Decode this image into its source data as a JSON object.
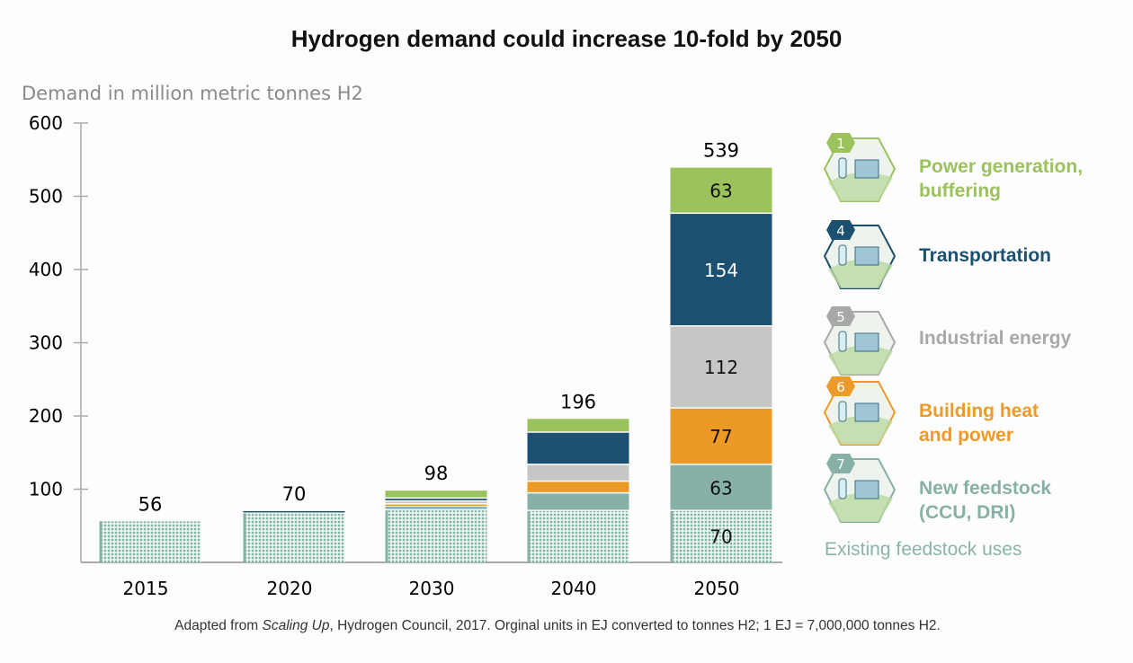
{
  "title": "Hydrogen demand could increase 10-fold by 2050",
  "footnote": {
    "pre": "Adapted from ",
    "italic": "Scaling Up",
    "post": ", Hydrogen Council, 2017. Orginal units in EJ converted to tonnes H2; 1 EJ = 7,000,000 tonnes H2."
  },
  "legend": [
    {
      "num": "1",
      "label_lines": [
        "Power generation,",
        "buffering"
      ],
      "color": "#9bc25d",
      "icon": "wind-electrolyser-icon"
    },
    {
      "num": "4",
      "label_lines": [
        "Transportation"
      ],
      "color": "#1b5070",
      "icon": "fuel-station-icon"
    },
    {
      "num": "5",
      "label_lines": [
        "Industrial energy"
      ],
      "color": "#a8a8a8",
      "icon": "factory-icon"
    },
    {
      "num": "6",
      "label_lines": [
        "Building heat",
        "and power"
      ],
      "color": "#ec9a2a",
      "icon": "building-chp-icon"
    },
    {
      "num": "7",
      "label_lines": [
        "New feedstock",
        "(CCU, DRI)"
      ],
      "color": "#87b0a7",
      "icon": "feedstock-plant-icon"
    }
  ],
  "existing_label": "Existing feedstock uses",
  "chart_data": {
    "type": "bar",
    "stacked": true,
    "title": "Hydrogen demand could increase 10-fold by 2050",
    "ylabel": "Demand in million metric tonnes H2",
    "ylim": [
      0,
      600
    ],
    "yticks": [
      100,
      200,
      300,
      400,
      500,
      600
    ],
    "categories": [
      "2015",
      "2020",
      "2030",
      "2040",
      "2050"
    ],
    "totals": [
      "56",
      "70",
      "98",
      "196",
      "539"
    ],
    "series": [
      {
        "name": "Existing feedstock uses",
        "color": "#87b0a7",
        "pattern": "dotted",
        "values": [
          56,
          67,
          71,
          70,
          70
        ],
        "labels": [
          "",
          "",
          "",
          "",
          "70"
        ]
      },
      {
        "name": "New feedstock (CCU, DRI)",
        "color": "#87b0a7",
        "values": [
          0,
          0,
          5,
          24,
          63
        ],
        "labels": [
          "",
          "",
          "",
          "",
          "63"
        ]
      },
      {
        "name": "Building heat and power",
        "color": "#ec9a26",
        "values": [
          0,
          0,
          3,
          16,
          77
        ],
        "labels": [
          "",
          "",
          "",
          "",
          "77"
        ]
      },
      {
        "name": "Industrial energy",
        "color": "#c6c6c6",
        "values": [
          0,
          0,
          4,
          23,
          112
        ],
        "labels": [
          "",
          "",
          "",
          "",
          "112"
        ]
      },
      {
        "name": "Transportation",
        "color": "#1b5070",
        "values": [
          0,
          3,
          4,
          44,
          154
        ],
        "labels": [
          "",
          "",
          "",
          "",
          "154"
        ]
      },
      {
        "name": "Power generation, buffering",
        "color": "#9bc25d",
        "values": [
          0,
          0,
          11,
          19,
          63
        ],
        "labels": [
          "",
          "",
          "",
          "",
          "63"
        ]
      }
    ],
    "grid": false,
    "legend_position": "right"
  }
}
